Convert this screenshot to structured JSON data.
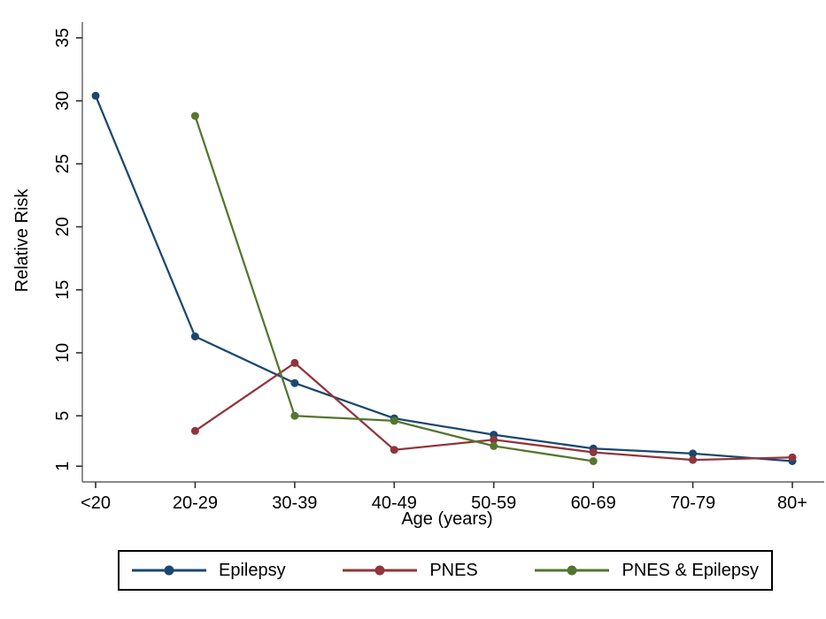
{
  "figure": {
    "background": "#ffffff"
  },
  "colors": {
    "axis_line": "#606060",
    "tick_mark": "#303030",
    "text": "#000000",
    "legend_border": "#000000",
    "epilepsy_blue": "#1a476f",
    "pnes_maroon": "#90353b",
    "pnes_epilepsy_olive": "#55752f"
  },
  "chart_data": {
    "type": "line",
    "title": "",
    "xlabel": "Age (years)",
    "ylabel": "Relative Risk",
    "categories": [
      "<20",
      "20-29",
      "30-39",
      "40-49",
      "50-59",
      "60-69",
      "70-79",
      "80+"
    ],
    "yticks": [
      1,
      5,
      10,
      15,
      20,
      25,
      30,
      35
    ],
    "ylim": [
      -0.25,
      36.25
    ],
    "grid": false,
    "legend_position": "bottom",
    "marker": "circle",
    "series": [
      {
        "name": "Epilepsy",
        "color": "#1a476f",
        "values": [
          30.4,
          11.3,
          7.6,
          4.8,
          3.5,
          2.4,
          2.0,
          1.4
        ]
      },
      {
        "name": "PNES",
        "color": "#90353b",
        "values": [
          null,
          3.8,
          9.2,
          2.3,
          3.1,
          2.1,
          1.5,
          1.7
        ]
      },
      {
        "name": "PNES & Epilepsy",
        "color": "#55752f",
        "values": [
          null,
          28.8,
          5.0,
          4.6,
          2.6,
          1.4,
          null,
          null
        ]
      }
    ]
  }
}
